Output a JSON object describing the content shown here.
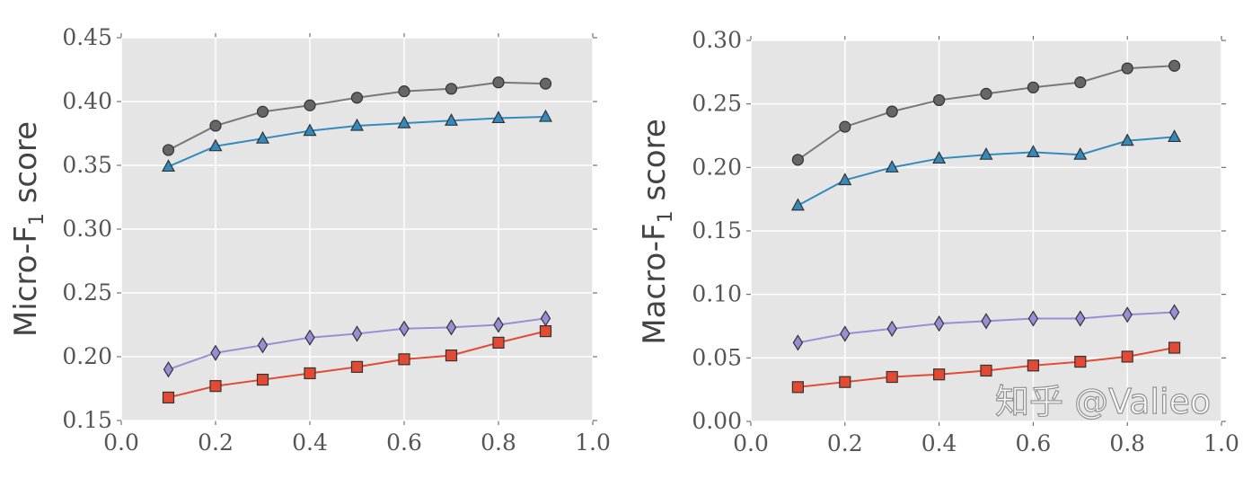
{
  "chart_data": [
    {
      "type": "line",
      "xlabel": "",
      "ylabel": "Micro-F",
      "ylabel_sub": "1",
      "ylabel_suffix": " score",
      "xlim": [
        0.0,
        1.0
      ],
      "ylim": [
        0.15,
        0.45
      ],
      "xticks": [
        "0.0",
        "0.2",
        "0.4",
        "0.6",
        "0.8",
        "1.0"
      ],
      "yticks": [
        "0.15",
        "0.20",
        "0.25",
        "0.30",
        "0.35",
        "0.40",
        "0.45"
      ],
      "grid": true,
      "x": [
        0.1,
        0.2,
        0.3,
        0.4,
        0.5,
        0.6,
        0.7,
        0.8,
        0.9
      ],
      "series": [
        {
          "marker": "circle",
          "color": "#777777",
          "fill": "#666666",
          "values": [
            0.362,
            0.381,
            0.392,
            0.397,
            0.403,
            0.408,
            0.41,
            0.415,
            0.414
          ]
        },
        {
          "marker": "triangle",
          "color": "#348abd",
          "fill": "#348abd",
          "values": [
            0.349,
            0.365,
            0.371,
            0.377,
            0.381,
            0.383,
            0.385,
            0.387,
            0.388
          ]
        },
        {
          "marker": "diamond",
          "color": "#988ed5",
          "fill": "#988ed5",
          "values": [
            0.19,
            0.203,
            0.209,
            0.215,
            0.218,
            0.222,
            0.223,
            0.225,
            0.23
          ]
        },
        {
          "marker": "square",
          "color": "#e24a33",
          "fill": "#e24a33",
          "values": [
            0.168,
            0.177,
            0.182,
            0.187,
            0.192,
            0.198,
            0.201,
            0.211,
            0.22
          ]
        }
      ]
    },
    {
      "type": "line",
      "xlabel": "",
      "ylabel": "Macro-F",
      "ylabel_sub": "1",
      "ylabel_suffix": " score",
      "xlim": [
        0.0,
        1.0
      ],
      "ylim": [
        0.0,
        0.3
      ],
      "xticks": [
        "0.0",
        "0.2",
        "0.4",
        "0.6",
        "0.8",
        "1.0"
      ],
      "yticks": [
        "0.00",
        "0.05",
        "0.10",
        "0.15",
        "0.20",
        "0.25",
        "0.30"
      ],
      "grid": true,
      "x": [
        0.1,
        0.2,
        0.3,
        0.4,
        0.5,
        0.6,
        0.7,
        0.8,
        0.9
      ],
      "series": [
        {
          "marker": "circle",
          "color": "#777777",
          "fill": "#666666",
          "values": [
            0.206,
            0.232,
            0.244,
            0.253,
            0.258,
            0.263,
            0.267,
            0.278,
            0.28
          ]
        },
        {
          "marker": "triangle",
          "color": "#348abd",
          "fill": "#348abd",
          "values": [
            0.17,
            0.19,
            0.2,
            0.207,
            0.21,
            0.212,
            0.21,
            0.221,
            0.224
          ]
        },
        {
          "marker": "diamond",
          "color": "#988ed5",
          "fill": "#988ed5",
          "values": [
            0.062,
            0.069,
            0.073,
            0.077,
            0.079,
            0.081,
            0.081,
            0.084,
            0.086
          ]
        },
        {
          "marker": "square",
          "color": "#e24a33",
          "fill": "#e24a33",
          "values": [
            0.027,
            0.031,
            0.035,
            0.037,
            0.04,
            0.044,
            0.047,
            0.051,
            0.058
          ]
        }
      ]
    }
  ],
  "watermark": "知乎 @Valieo"
}
